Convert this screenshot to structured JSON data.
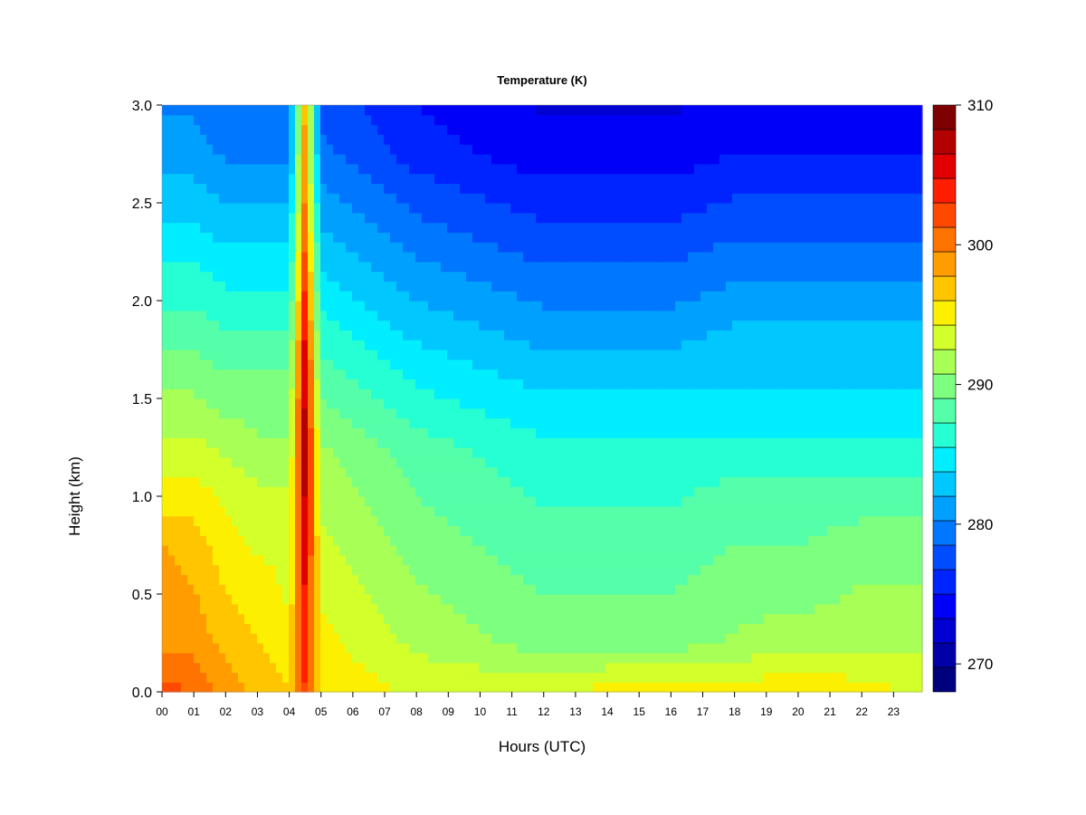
{
  "chart_data": {
    "type": "heatmap",
    "title": "Temperature (K)",
    "xlabel": "Hours (UTC)",
    "ylabel": "Height (km)",
    "xlim": [
      0,
      23.9
    ],
    "ylim": [
      0.0,
      3.0
    ],
    "x_ticks": [
      "00",
      "01",
      "02",
      "03",
      "04",
      "05",
      "06",
      "07",
      "08",
      "09",
      "10",
      "11",
      "12",
      "13",
      "14",
      "15",
      "16",
      "17",
      "18",
      "19",
      "20",
      "21",
      "22",
      "23"
    ],
    "y_ticks": [
      "0.0",
      "0.5",
      "1.0",
      "1.5",
      "2.0",
      "2.5",
      "3.0"
    ],
    "colorbar": {
      "min": 268,
      "max": 310,
      "ticks": [
        "270",
        "280",
        "290",
        "300",
        "310"
      ],
      "colors": [
        "#00007f",
        "#0000a6",
        "#0000d2",
        "#0000f8",
        "#0024ff",
        "#004dff",
        "#0077ff",
        "#00a0ff",
        "#00c8ff",
        "#00eeff",
        "#25ffd3",
        "#55ffa9",
        "#7dff7f",
        "#a8ff55",
        "#d3ff2b",
        "#fcf000",
        "#ffc600",
        "#ff9c00",
        "#ff7300",
        "#ff4800",
        "#ff1e00",
        "#e00000",
        "#b30000",
        "#7f0000"
      ]
    },
    "description_rows_km": [
      0.0,
      0.25,
      0.5,
      0.75,
      1.0,
      1.25,
      1.5,
      1.75,
      2.0,
      2.25,
      2.5,
      2.75,
      3.0
    ],
    "description_cols_hours": [
      0,
      1,
      2,
      3,
      4,
      4.5,
      5,
      6,
      8,
      10,
      12,
      14,
      16,
      18,
      20,
      22,
      23.9
    ],
    "values_K": [
      [
        302,
        301,
        299,
        297,
        296,
        303,
        296,
        295,
        294,
        294,
        294,
        295,
        295,
        295,
        296,
        295,
        294
      ],
      [
        299,
        299,
        297,
        296,
        295,
        304,
        295,
        294,
        292,
        291,
        290,
        290,
        290,
        291,
        292,
        292,
        292
      ],
      [
        298,
        298,
        296,
        295,
        294,
        305,
        294,
        293,
        291,
        290,
        289,
        289,
        289,
        290,
        290,
        291,
        291
      ],
      [
        298,
        297,
        295,
        294,
        294,
        306,
        293,
        292,
        290,
        289,
        288,
        288,
        288,
        289,
        289,
        290,
        290
      ],
      [
        295,
        295,
        294,
        293,
        293,
        307,
        292,
        291,
        289,
        288,
        287,
        287,
        287,
        288,
        288,
        288,
        288
      ],
      [
        293,
        293,
        292,
        291,
        291,
        308,
        291,
        290,
        288,
        287,
        286,
        286,
        286,
        286,
        286,
        286,
        286
      ],
      [
        291,
        291,
        290,
        290,
        290,
        307,
        289,
        288,
        286,
        285,
        284,
        284,
        284,
        284,
        284,
        284,
        284
      ],
      [
        289,
        289,
        288,
        288,
        288,
        306,
        287,
        286,
        284,
        283,
        282,
        282,
        282,
        283,
        283,
        283,
        283
      ],
      [
        287,
        287,
        286,
        286,
        286,
        304,
        285,
        284,
        282,
        281,
        280,
        280,
        280,
        281,
        281,
        281,
        281
      ],
      [
        285,
        285,
        284,
        284,
        284,
        302,
        283,
        282,
        280,
        279,
        278,
        278,
        278,
        279,
        279,
        279,
        279
      ],
      [
        283,
        283,
        282,
        282,
        282,
        300,
        281,
        280,
        278,
        277,
        276,
        276,
        276,
        277,
        277,
        277,
        277
      ],
      [
        281,
        281,
        280,
        280,
        280,
        299,
        279,
        278,
        276,
        275,
        274,
        274,
        274,
        275,
        275,
        275,
        275
      ],
      [
        280,
        280,
        279,
        279,
        279,
        298,
        278,
        277,
        275,
        274,
        273,
        273,
        273,
        274,
        274,
        274,
        274
      ]
    ]
  }
}
